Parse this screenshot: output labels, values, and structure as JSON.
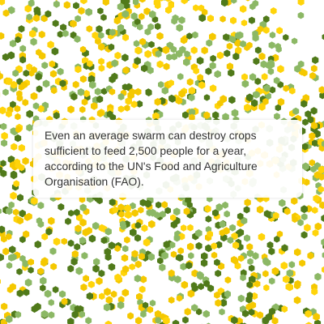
{
  "caption": {
    "text": "Even an average swarm can destroy crops sufficient to feed 2,500 people for a year, according to the UN's Food and Agriculture Organisation (FAO)."
  },
  "swarm": {
    "description_icon": "locust-dot-icon",
    "colors": [
      "#f5c800",
      "#8cb865",
      "#507a1a",
      "#f5c800",
      "#8cb865",
      "#507a1a",
      "#ffd40a"
    ]
  }
}
